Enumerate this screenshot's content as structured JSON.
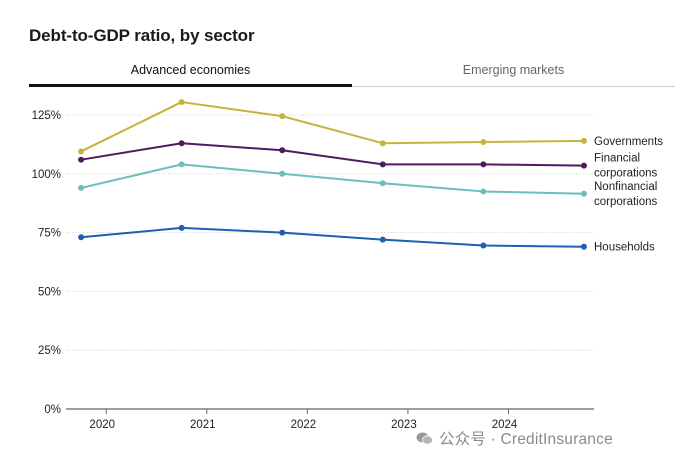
{
  "chart_data": {
    "type": "line",
    "title": "Debt-to-GDP ratio, by sector",
    "tabs": [
      {
        "label": "Advanced economies",
        "active": true
      },
      {
        "label": "Emerging markets",
        "active": false
      }
    ],
    "x": [
      2019.75,
      2020.75,
      2021.75,
      2022.75,
      2023.75,
      2024.75
    ],
    "x_ticks": [
      "2020",
      "2021",
      "2022",
      "2023",
      "2024"
    ],
    "xlim": [
      2019.6,
      2024.85
    ],
    "y_ticks": [
      "0%",
      "25%",
      "50%",
      "75%",
      "100%",
      "125%"
    ],
    "ylim": [
      0,
      125
    ],
    "grid": true,
    "legend": "line-end labels",
    "series": [
      {
        "name": "Governments",
        "color": "#c7b23a",
        "values": [
          109.5,
          130.5,
          124.5,
          113,
          113.5,
          114
        ]
      },
      {
        "name": "Financial corporations",
        "color": "#4f1a5e",
        "values": [
          106,
          113,
          110,
          104,
          104,
          103.5
        ]
      },
      {
        "name": "Nonfinancial corporations",
        "color": "#6bbfbb",
        "values": [
          94,
          104,
          100,
          96,
          92.5,
          91.5
        ]
      },
      {
        "name": "Households",
        "color": "#1e5fb0",
        "values": [
          73,
          77,
          75,
          72,
          69.5,
          69
        ]
      }
    ]
  },
  "watermark": {
    "text": "公众号 · CreditInsurance"
  }
}
